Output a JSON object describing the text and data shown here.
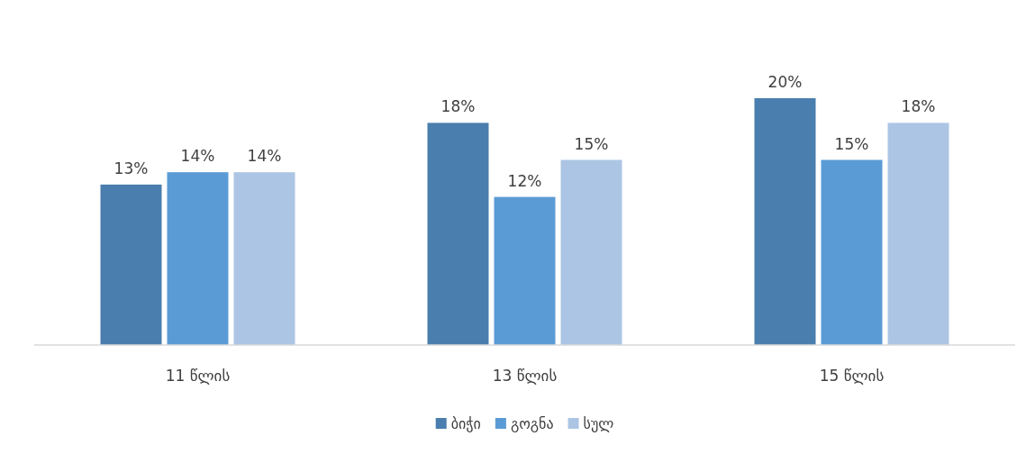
{
  "chart_data": {
    "type": "bar",
    "categories": [
      "11 წლის",
      "13 წლის",
      "15 წლის"
    ],
    "series": [
      {
        "name": "ბიჭი",
        "color": "#4a7eae",
        "values": [
          13,
          18,
          20
        ],
        "value_labels": [
          "13%",
          "18%",
          "20%"
        ]
      },
      {
        "name": "გოგნა",
        "color": "#5b9bd5",
        "values": [
          14,
          12,
          15
        ],
        "value_labels": [
          "14%",
          "12%",
          "15%"
        ]
      },
      {
        "name": "სულ",
        "color": "#adc5e4",
        "values": [
          14,
          15,
          18
        ],
        "value_labels": [
          "14%",
          "15%",
          "18%"
        ]
      }
    ],
    "legend": "bottom"
  }
}
